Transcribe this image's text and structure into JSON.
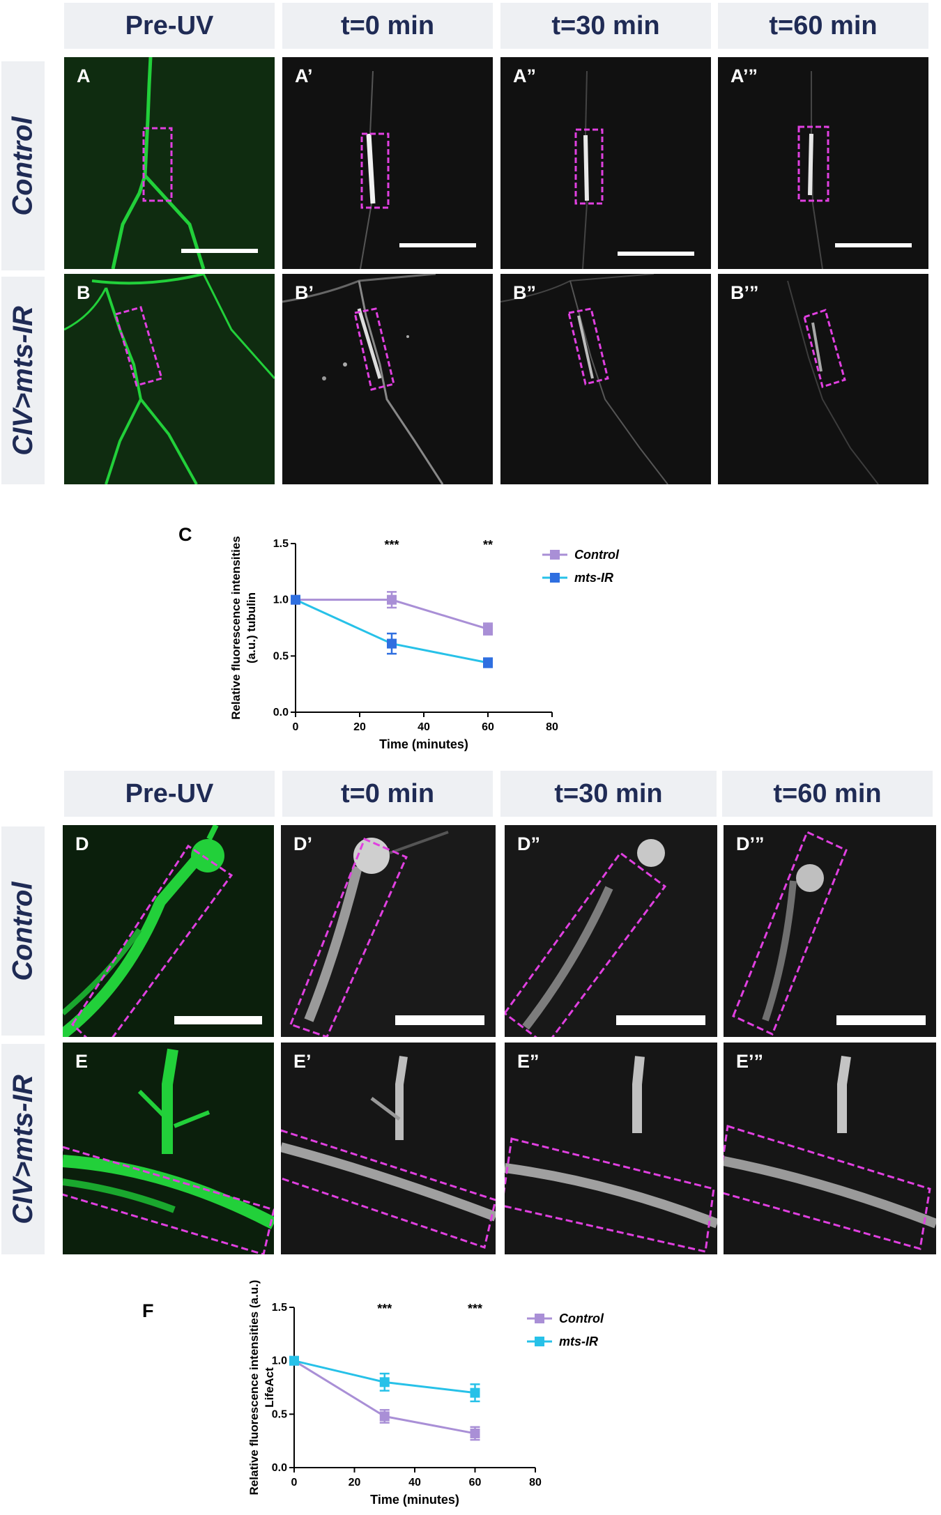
{
  "figure": {
    "top_headers": [
      "Pre-UV",
      "t=0 min",
      "t=30 min",
      "t=60 min"
    ],
    "bottom_headers": [
      "Pre-UV",
      "t=0 min",
      "t=30 min",
      "t=60 min"
    ],
    "row_labels": {
      "A": "Control",
      "B": "CIV>mts-IR",
      "D": "Control",
      "E": "CIV>mts-IR"
    },
    "panel_labels": {
      "A": [
        "A",
        "A’",
        "A”",
        "A’”"
      ],
      "B": [
        "B",
        "B’",
        "B”",
        "B’”"
      ],
      "D": [
        "D",
        "D’",
        "D”",
        "D’”"
      ],
      "E": [
        "E",
        "E’",
        "E”",
        "E’”"
      ]
    },
    "chart_letters": {
      "C": "C",
      "F": "F"
    },
    "colors": {
      "header_bg": "#eef0f3",
      "header_text": "#1f2b55",
      "roi_box": "#e040e0",
      "pre_uv_green": "#22d03a",
      "control_series": "#a98fd6",
      "mts_series": "#27c1e8",
      "mts_marker_c": "#2f6fe0"
    }
  },
  "chart_data": [
    {
      "type": "line",
      "title": "",
      "xlabel": "Time (minutes)",
      "ylabel": [
        "Relative fluorescence intensities",
        "(a.u.) tubulin"
      ],
      "xlim": [
        0,
        80
      ],
      "ylim": [
        0,
        1.5
      ],
      "xticks": [
        "0",
        "20",
        "40",
        "60",
        "80"
      ],
      "yticks": [
        "0.0",
        "0.5",
        "1.0",
        "1.5"
      ],
      "x": [
        0,
        30,
        60
      ],
      "series": [
        {
          "name": "Control",
          "values": [
            1.0,
            1.0,
            0.74
          ],
          "errors": [
            0,
            0.07,
            0.05
          ]
        },
        {
          "name": "mts-IR",
          "values": [
            1.0,
            0.61,
            0.44
          ],
          "errors": [
            0,
            0.09,
            0.04
          ]
        }
      ],
      "annotations": [
        {
          "x": 30,
          "text": "***"
        },
        {
          "x": 60,
          "text": "**"
        }
      ],
      "legend": "top-right"
    },
    {
      "type": "line",
      "title": "",
      "xlabel": "Time (minutes)",
      "ylabel": [
        "Relative fluorescence intensities (a.u.)",
        "LifeAct"
      ],
      "xlim": [
        0,
        80
      ],
      "ylim": [
        0,
        1.5
      ],
      "xticks": [
        "0",
        "20",
        "40",
        "60",
        "80"
      ],
      "yticks": [
        "0.0",
        "0.5",
        "1.0",
        "1.5"
      ],
      "x": [
        0,
        30,
        60
      ],
      "series": [
        {
          "name": "Control",
          "values": [
            1.0,
            0.48,
            0.32
          ],
          "errors": [
            0,
            0.06,
            0.06
          ]
        },
        {
          "name": "mts-IR",
          "values": [
            1.0,
            0.8,
            0.7
          ],
          "errors": [
            0,
            0.08,
            0.08
          ]
        }
      ],
      "annotations": [
        {
          "x": 30,
          "text": "***"
        },
        {
          "x": 60,
          "text": "***"
        }
      ],
      "legend": "top-right"
    }
  ]
}
